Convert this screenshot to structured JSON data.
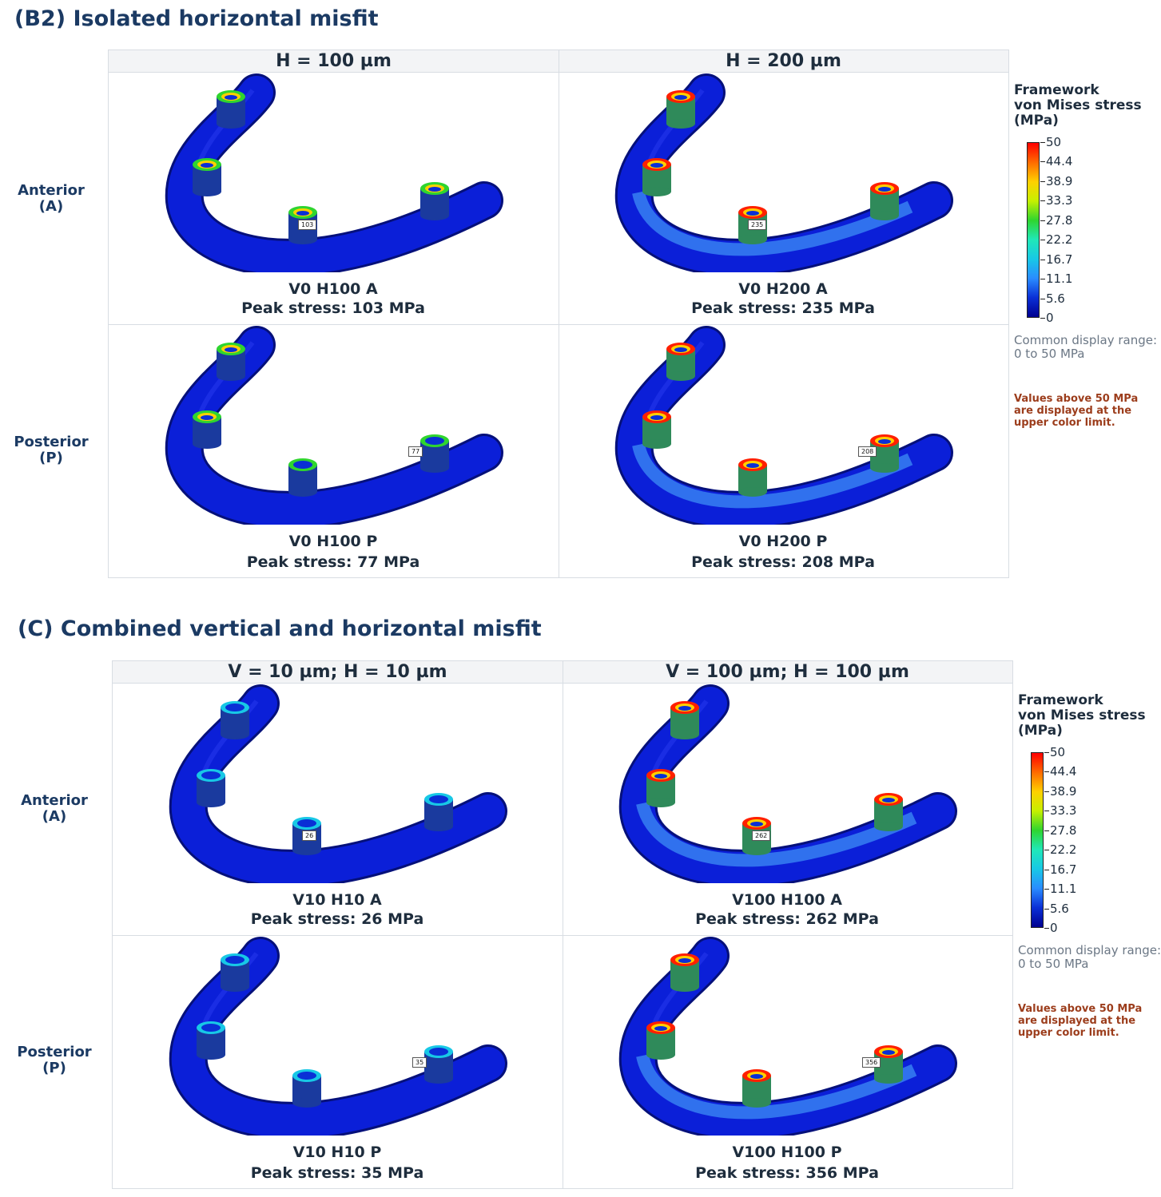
{
  "sections": [
    {
      "title": "(B2) Isolated horizontal misfit",
      "col_headers": [
        "H = 100 µm",
        "H = 200 µm"
      ],
      "row_labels": [
        [
          "Anterior",
          "(A)"
        ],
        [
          "Posterior",
          "(P)"
        ]
      ],
      "cells": [
        {
          "title": "V0 H100 A",
          "peak": "Peak stress: 103 MPa",
          "tag": "103",
          "stress_level": 0.35
        },
        {
          "title": "V0 H200 A",
          "peak": "Peak stress: 235 MPa",
          "tag": "235",
          "stress_level": 0.8
        },
        {
          "title": "V0 H100 P",
          "peak": "Peak stress: 77 MPa",
          "tag": "77",
          "stress_level": 0.3
        },
        {
          "title": "V0 H200 P",
          "peak": "Peak stress: 208 MPa",
          "tag": "208",
          "stress_level": 0.7
        }
      ]
    },
    {
      "title": "(C) Combined vertical and horizontal misfit",
      "col_headers": [
        "V = 10 µm; H = 10 µm",
        "V = 100 µm; H = 100 µm"
      ],
      "row_labels": [
        [
          "Anterior",
          "(A)"
        ],
        [
          "Posterior",
          "(P)"
        ]
      ],
      "cells": [
        {
          "title": "V10 H10 A",
          "peak": "Peak stress: 26 MPa",
          "tag": "26",
          "stress_level": 0.1
        },
        {
          "title": "V100 H100 A",
          "peak": "Peak stress: 262 MPa",
          "tag": "262",
          "stress_level": 0.75
        },
        {
          "title": "V10 H10 P",
          "peak": "Peak stress: 35 MPa",
          "tag": "35",
          "stress_level": 0.12
        },
        {
          "title": "V100 H100 P",
          "peak": "Peak stress: 356 MPa",
          "tag": "356",
          "stress_level": 0.75
        }
      ]
    }
  ],
  "legend": {
    "title_lines": [
      "Framework",
      "von Mises stress",
      "(MPa)"
    ],
    "ticks": [
      "50",
      "44.4",
      "38.9",
      "33.3",
      "27.8",
      "22.2",
      "16.7",
      "11.1",
      "5.6",
      "0"
    ],
    "note": "Common display range: 0 to 50 MPa",
    "warning": "Values above 50 MPa are displayed at the upper color limit.",
    "colors": [
      "#ff0000",
      "#ff6a00",
      "#ffd000",
      "#c6f000",
      "#2fd52f",
      "#20e8b8",
      "#18c8e6",
      "#2a8cff",
      "#0a2fd6",
      "#000090"
    ]
  },
  "colors": {
    "framework_base": "#0b1fd8",
    "framework_light": "#3d8df5"
  }
}
